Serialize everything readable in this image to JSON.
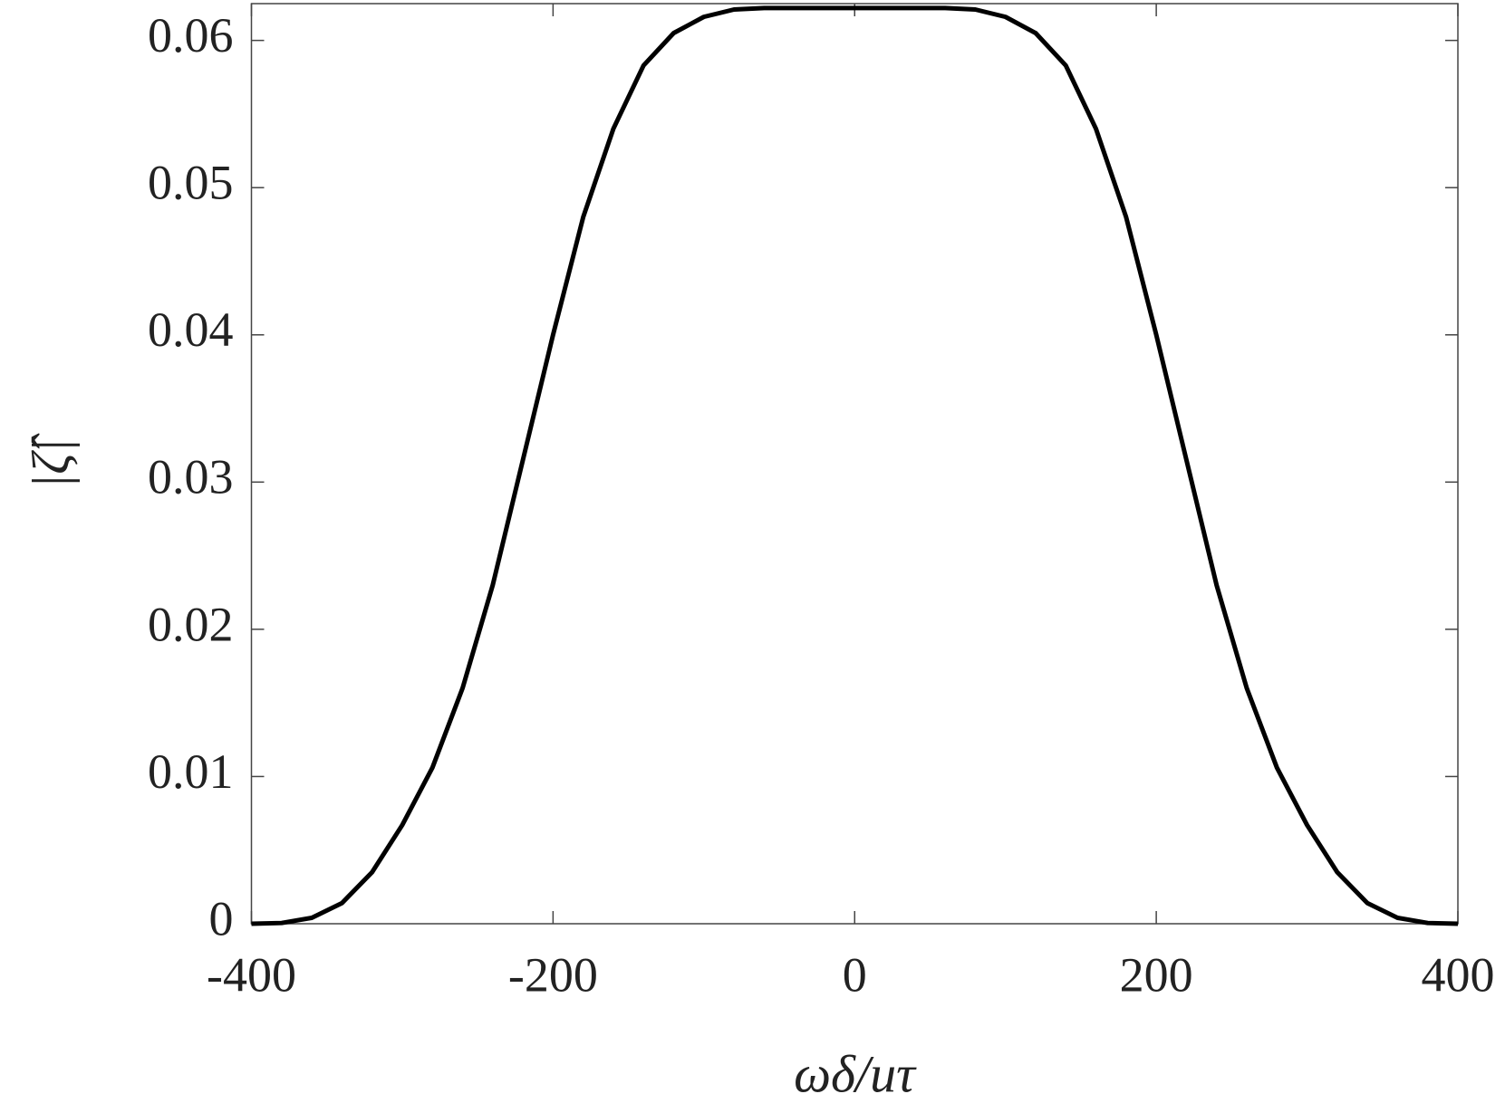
{
  "chart_data": {
    "type": "line",
    "x_label": "ωδ/uτ",
    "y_label": "|ζ̂|",
    "x": [
      -400,
      -380,
      -360,
      -340,
      -320,
      -300,
      -280,
      -260,
      -240,
      -220,
      -200,
      -180,
      -160,
      -140,
      -120,
      -100,
      -80,
      -60,
      -40,
      -20,
      0,
      20,
      40,
      60,
      80,
      100,
      120,
      140,
      160,
      180,
      200,
      220,
      240,
      260,
      280,
      300,
      320,
      340,
      360,
      380,
      400
    ],
    "series": [
      {
        "color": "#000000",
        "values": [
          0,
          5e-05,
          0.0004,
          0.0014,
          0.0035,
          0.0067,
          0.0106,
          0.016,
          0.023,
          0.0315,
          0.04,
          0.048,
          0.054,
          0.0583,
          0.0605,
          0.0616,
          0.0621,
          0.0622,
          0.0622,
          0.0622,
          0.0622,
          0.0622,
          0.0622,
          0.0622,
          0.0621,
          0.0616,
          0.0605,
          0.0583,
          0.054,
          0.048,
          0.04,
          0.0315,
          0.023,
          0.016,
          0.0106,
          0.0067,
          0.0035,
          0.0014,
          0.0004,
          5e-05,
          0
        ]
      }
    ],
    "xlim": [
      -400,
      400
    ],
    "ylim": [
      0,
      0.0625
    ],
    "xticks": [
      -400,
      -200,
      0,
      200,
      400
    ],
    "yticks": [
      0,
      0.01,
      0.02,
      0.03,
      0.04,
      0.05,
      0.06
    ]
  }
}
